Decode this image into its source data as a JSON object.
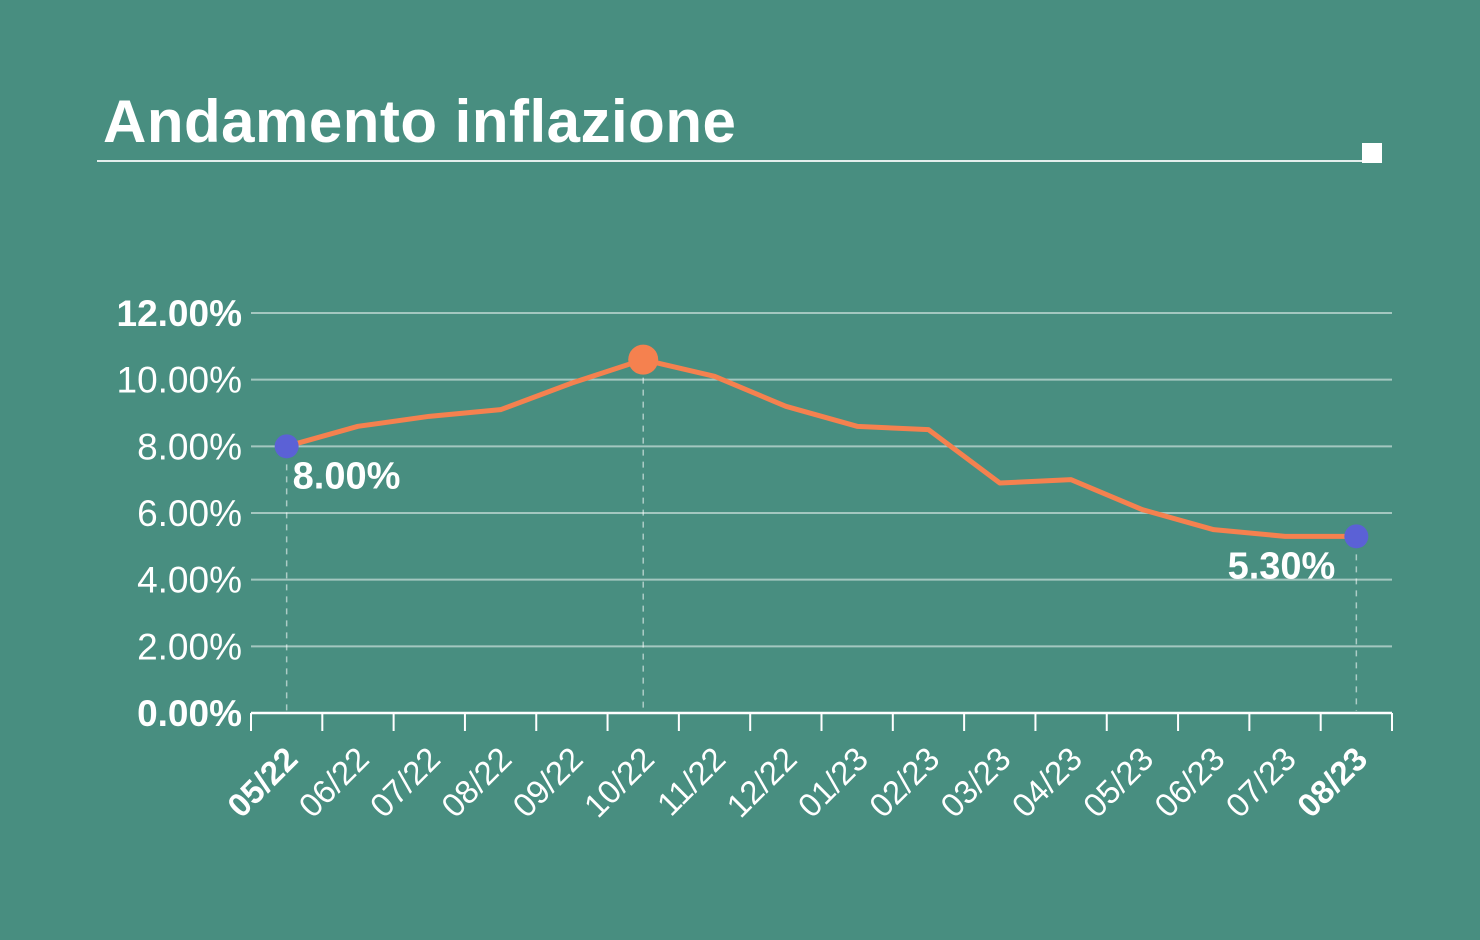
{
  "header": {
    "title": "Andamento inflazione"
  },
  "theme": {
    "background": "#488E80",
    "text": "#FFFFFF",
    "line": "#F5814F",
    "marker_blue": "#5B61D6",
    "marker_orange": "#F5814F",
    "grid": "rgba(255,255,255,0.5)",
    "guide": "rgba(255,255,255,0.55)",
    "axis": "#FFFFFF"
  },
  "chart_data": {
    "type": "line",
    "title": "Andamento inflazione",
    "categories": [
      "05/22",
      "06/22",
      "07/22",
      "08/22",
      "09/22",
      "10/22",
      "11/22",
      "12/22",
      "01/23",
      "02/23",
      "03/23",
      "04/23",
      "05/23",
      "06/23",
      "07/23",
      "08/23"
    ],
    "values": [
      8.0,
      8.6,
      8.9,
      9.1,
      9.9,
      10.6,
      10.1,
      9.2,
      8.6,
      8.5,
      6.9,
      7.0,
      6.1,
      5.5,
      5.3,
      5.3
    ],
    "xlabel": "",
    "ylabel": "",
    "ylim": [
      0,
      12
    ],
    "y_tick_labels": [
      "0.00%",
      "2.00%",
      "4.00%",
      "6.00%",
      "8.00%",
      "10.00%",
      "12.00%"
    ],
    "bold_y_tick_labels": [
      "0.00%",
      "12.00%"
    ],
    "bold_x_tick_labels": [
      "05/22",
      "08/23"
    ],
    "grid": "horizontal",
    "legend": false,
    "markers": [
      {
        "category": "05/22",
        "value": 8.0,
        "color": "blue",
        "radius": 12,
        "guide_line": true
      },
      {
        "category": "10/22",
        "value": 10.6,
        "color": "orange",
        "radius": 15,
        "guide_line": true
      },
      {
        "category": "08/23",
        "value": 5.3,
        "color": "blue",
        "radius": 12,
        "guide_line": true
      }
    ],
    "annotations": [
      {
        "category": "05/22",
        "text": "8.00%",
        "placement": "below-right"
      },
      {
        "category": "08/23",
        "text": "5.30%",
        "placement": "below-left"
      }
    ]
  }
}
